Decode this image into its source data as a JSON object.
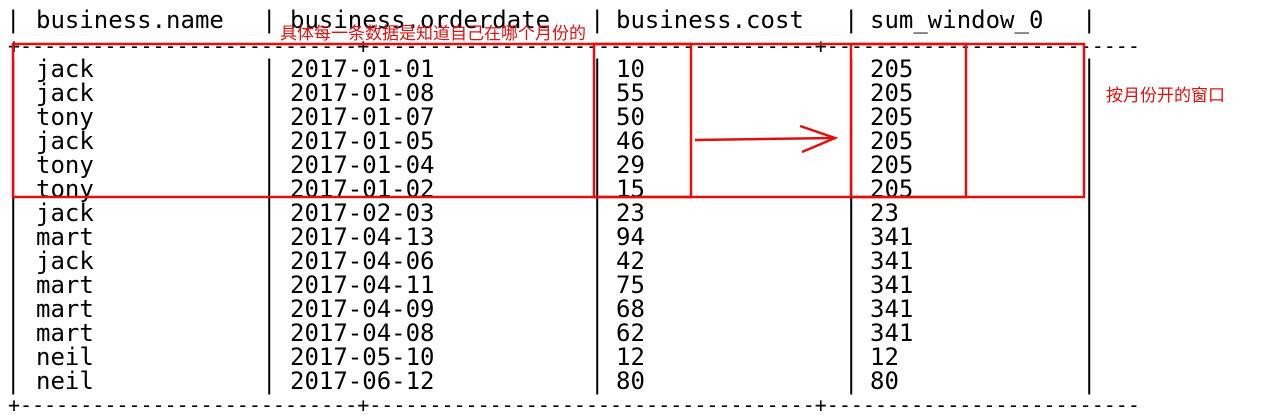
{
  "table": {
    "columns": [
      "business.name",
      "business.orderdate",
      "business.cost",
      "sum_window_0"
    ],
    "rows": [
      [
        "jack",
        "2017-01-01",
        "10",
        "205"
      ],
      [
        "jack",
        "2017-01-08",
        "55",
        "205"
      ],
      [
        "tony",
        "2017-01-07",
        "50",
        "205"
      ],
      [
        "jack",
        "2017-01-05",
        "46",
        "205"
      ],
      [
        "tony",
        "2017-01-04",
        "29",
        "205"
      ],
      [
        "tony",
        "2017-01-02",
        "15",
        "205"
      ],
      [
        "jack",
        "2017-02-03",
        "23",
        "23"
      ],
      [
        "mart",
        "2017-04-13",
        "94",
        "341"
      ],
      [
        "jack",
        "2017-04-06",
        "42",
        "341"
      ],
      [
        "mart",
        "2017-04-11",
        "75",
        "341"
      ],
      [
        "mart",
        "2017-04-09",
        "68",
        "341"
      ],
      [
        "mart",
        "2017-04-08",
        "62",
        "341"
      ],
      [
        "neil",
        "2017-05-10",
        "12",
        "12"
      ],
      [
        "neil",
        "2017-06-12",
        "80",
        "80"
      ]
    ]
  },
  "annotations": {
    "top_note": "具体每一条数据是知道自己在哪个月份的",
    "side_note": "按月份开的窗口",
    "color": "#e01010"
  }
}
